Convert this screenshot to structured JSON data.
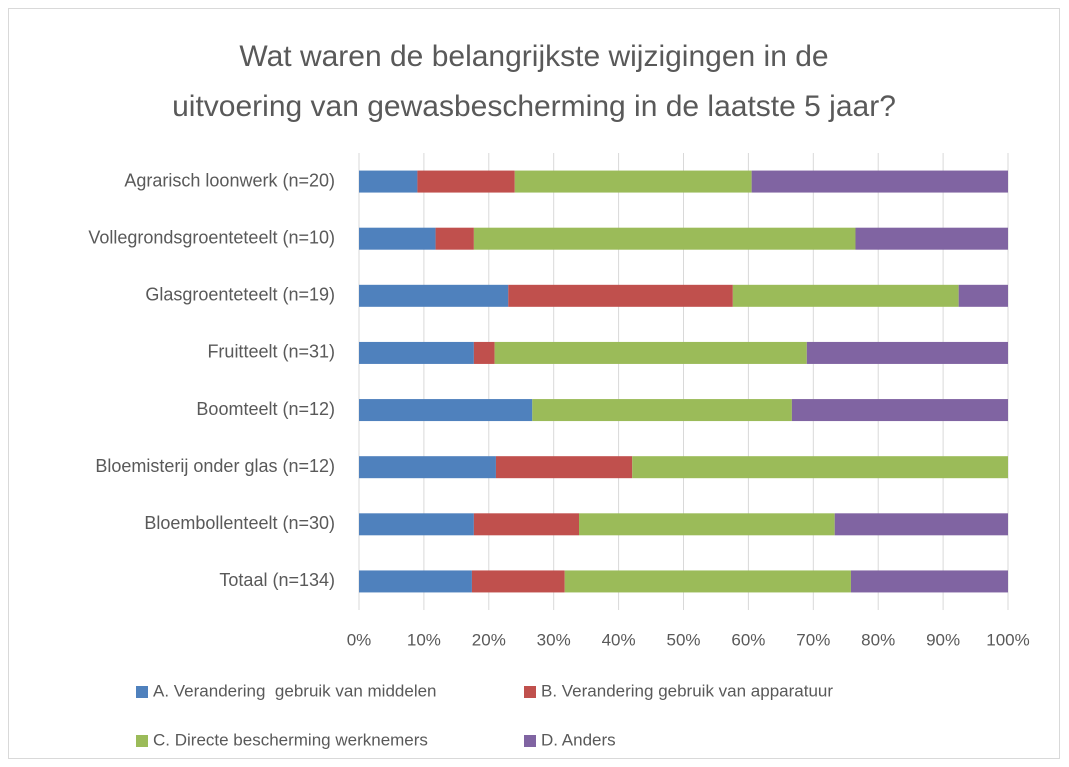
{
  "chart_data": {
    "type": "stacked-bar-horizontal",
    "title": [
      "Wat waren de belangrijkste wijzigingen in de",
      "uitvoering van gewasbescherming in de laatste 5 jaar?"
    ],
    "categories": [
      "Agrarisch loonwerk (n=20)",
      "Vollegrondsgroenteteelt (n=10)",
      "Glasgroenteteelt (n=19)",
      "Fruitteelt (n=31)",
      "Boomteelt (n=12)",
      "Bloemisterij onder glas (n=12)",
      "Bloembollenteelt (n=30)",
      "Totaal (n=134)"
    ],
    "series": [
      {
        "name": "A. Verandering  gebruik van middelen",
        "color": "#4f81bd",
        "values": [
          9,
          11.8,
          23,
          17.7,
          26.7,
          21.1,
          17.7,
          17.4
        ]
      },
      {
        "name": "B. Verandering gebruik van apparatuur",
        "color": "#c0504d",
        "values": [
          15,
          5.9,
          34.6,
          3.2,
          0,
          21,
          16.2,
          14.3
        ]
      },
      {
        "name": "C. Directe bescherming werknemers",
        "color": "#9bbb59",
        "values": [
          36.5,
          58.8,
          34.8,
          48.1,
          40,
          57.9,
          39.4,
          44.1
        ]
      },
      {
        "name": "D. Anders",
        "color": "#8064a2",
        "values": [
          39.5,
          23.5,
          7.6,
          31,
          33.3,
          0,
          26.7,
          24.2
        ]
      }
    ],
    "xlim": [
      0,
      100
    ],
    "xticks": [
      {
        "value": 0,
        "label": "0%"
      },
      {
        "value": 10,
        "label": "10%"
      },
      {
        "value": 20,
        "label": "20%"
      },
      {
        "value": 30,
        "label": "30%"
      },
      {
        "value": 40,
        "label": "40%"
      },
      {
        "value": 50,
        "label": "50%"
      },
      {
        "value": 60,
        "label": "60%"
      },
      {
        "value": 70,
        "label": "70%"
      },
      {
        "value": 80,
        "label": "80%"
      },
      {
        "value": 90,
        "label": "90%"
      },
      {
        "value": 100,
        "label": "100%"
      }
    ],
    "grid": true
  }
}
